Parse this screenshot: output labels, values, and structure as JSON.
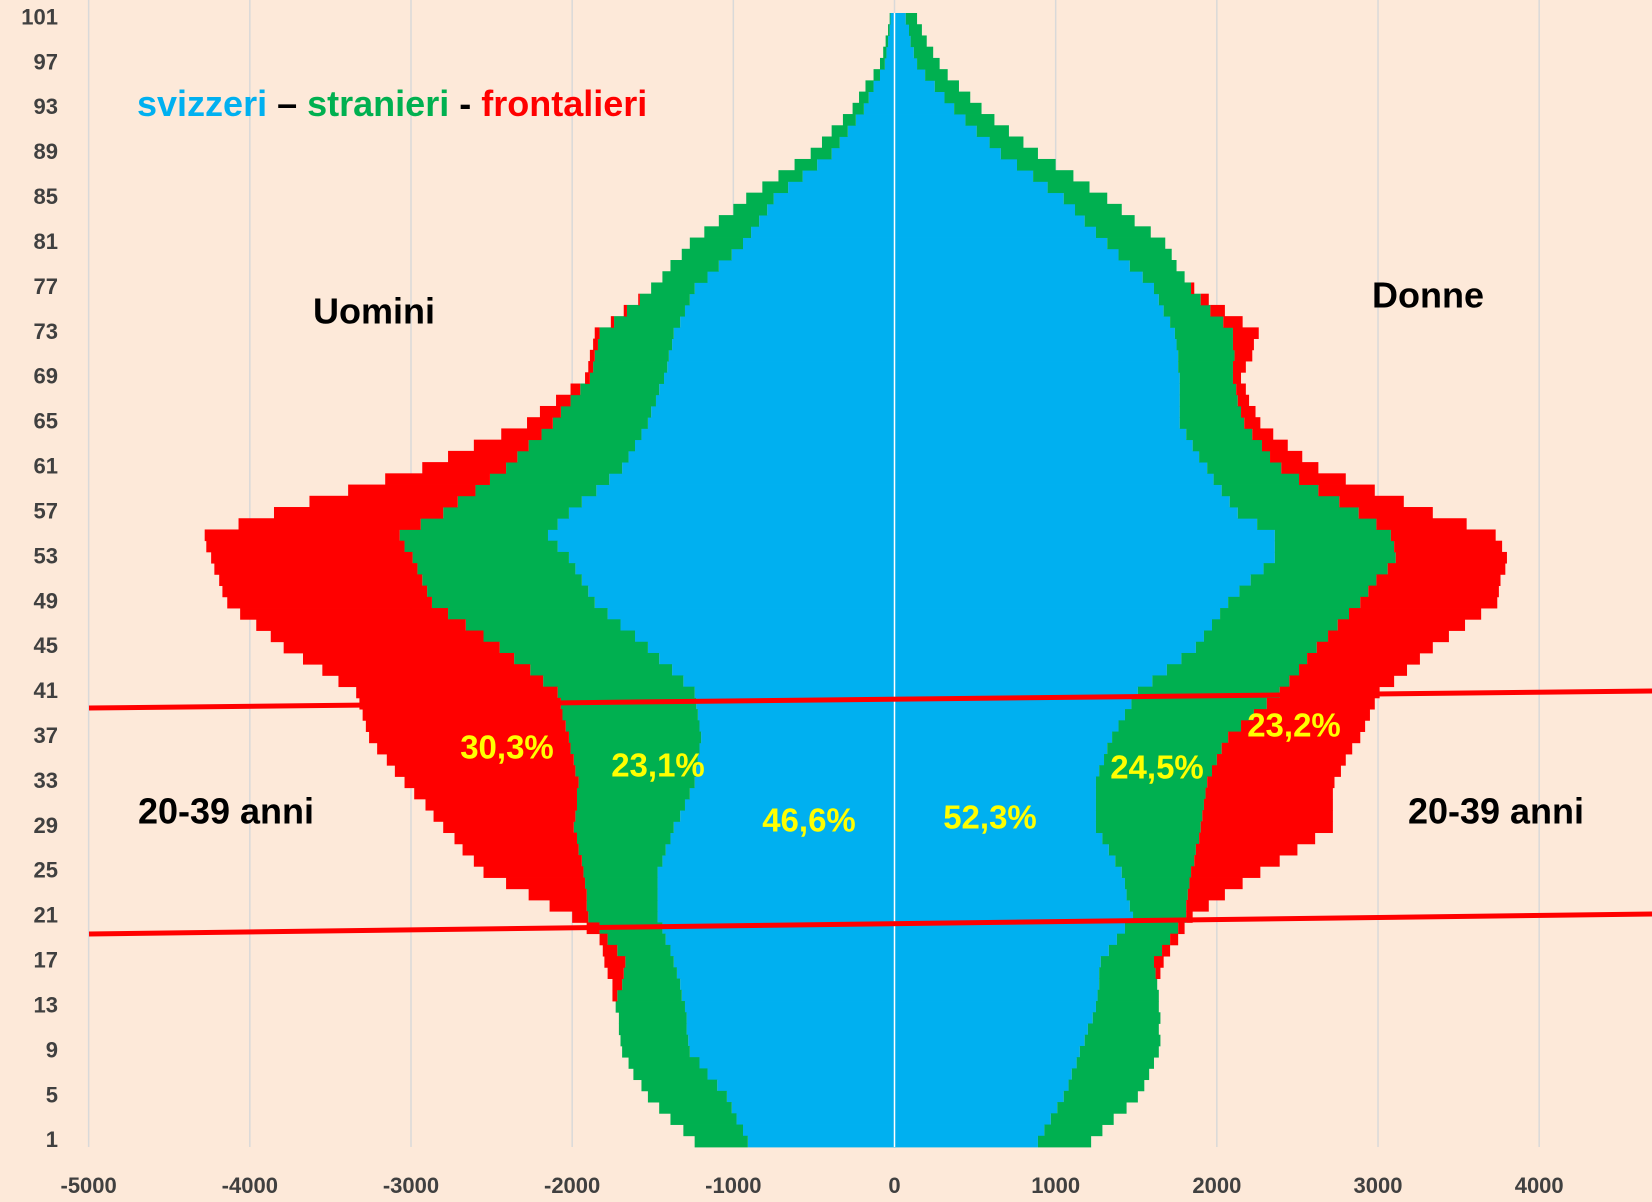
{
  "chart_data": {
    "type": "pyramid",
    "categories": [
      1,
      null,
      null,
      null,
      5,
      null,
      null,
      null,
      9,
      null,
      null,
      null,
      13,
      null,
      null,
      null,
      17,
      null,
      null,
      null,
      21,
      null,
      null,
      null,
      25,
      null,
      null,
      null,
      29,
      null,
      null,
      null,
      33,
      null,
      null,
      null,
      37,
      null,
      null,
      null,
      41,
      null,
      null,
      null,
      45,
      null,
      null,
      null,
      49,
      null,
      null,
      null,
      53,
      null,
      null,
      null,
      57,
      null,
      null,
      null,
      61,
      null,
      null,
      null,
      65,
      null,
      null,
      null,
      69,
      null,
      null,
      null,
      73,
      null,
      null,
      null,
      77,
      null,
      null,
      null,
      81,
      null,
      null,
      null,
      85,
      null,
      null,
      null,
      89,
      null,
      null,
      null,
      93,
      null,
      null,
      null,
      97,
      null,
      null,
      null,
      101
    ],
    "series": [
      {
        "name": "svizzeri",
        "color": "#00b0f0",
        "uomini": [
          -910,
          -940,
          -980,
          -1010,
          -1040,
          -1100,
          -1160,
          -1210,
          -1270,
          -1280,
          -1290,
          -1290,
          -1300,
          -1320,
          -1330,
          -1350,
          -1370,
          -1390,
          -1420,
          -1440,
          -1470,
          -1470,
          -1470,
          -1470,
          -1470,
          -1440,
          -1420,
          -1390,
          -1370,
          -1330,
          -1300,
          -1270,
          -1240,
          -1230,
          -1220,
          -1210,
          -1200,
          -1210,
          -1220,
          -1230,
          -1240,
          -1310,
          -1380,
          -1460,
          -1530,
          -1610,
          -1700,
          -1780,
          -1860,
          -1900,
          -1940,
          -1980,
          -2020,
          -2090,
          -2150,
          -2090,
          -2020,
          -1940,
          -1850,
          -1770,
          -1690,
          -1650,
          -1610,
          -1570,
          -1530,
          -1510,
          -1480,
          -1460,
          -1430,
          -1410,
          -1400,
          -1380,
          -1370,
          -1330,
          -1300,
          -1270,
          -1240,
          -1160,
          -1090,
          -1010,
          -940,
          -890,
          -840,
          -790,
          -750,
          -660,
          -570,
          -480,
          -390,
          -340,
          -290,
          -240,
          -190,
          -160,
          -130,
          -90,
          -60,
          -50,
          -40,
          -30,
          -25
        ],
        "donne": [
          890,
          930,
          970,
          1010,
          1050,
          1080,
          1100,
          1130,
          1150,
          1180,
          1200,
          1230,
          1250,
          1260,
          1270,
          1270,
          1280,
          1330,
          1380,
          1430,
          1480,
          1460,
          1440,
          1430,
          1410,
          1370,
          1330,
          1290,
          1250,
          1250,
          1250,
          1250,
          1250,
          1270,
          1300,
          1320,
          1350,
          1390,
          1430,
          1470,
          1510,
          1600,
          1690,
          1780,
          1870,
          1920,
          1970,
          2020,
          2070,
          2140,
          2210,
          2290,
          2360,
          2360,
          2360,
          2250,
          2130,
          2080,
          2030,
          1980,
          1940,
          1890,
          1850,
          1810,
          1770,
          1770,
          1770,
          1770,
          1770,
          1760,
          1760,
          1750,
          1740,
          1710,
          1670,
          1640,
          1610,
          1540,
          1460,
          1390,
          1320,
          1250,
          1180,
          1120,
          1050,
          950,
          860,
          760,
          660,
          590,
          510,
          440,
          370,
          310,
          250,
          190,
          140,
          120,
          100,
          90,
          70
        ]
      },
      {
        "name": "stranieri",
        "color": "#00b050",
        "uomini": [
          -330,
          -370,
          -410,
          -450,
          -490,
          -470,
          -460,
          -440,
          -420,
          -420,
          -420,
          -420,
          -430,
          -400,
          -360,
          -330,
          -300,
          -330,
          -360,
          -390,
          -430,
          -440,
          -440,
          -450,
          -460,
          -500,
          -540,
          -580,
          -620,
          -650,
          -670,
          -700,
          -720,
          -750,
          -770,
          -800,
          -820,
          -830,
          -840,
          -840,
          -850,
          -870,
          -880,
          -900,
          -920,
          -940,
          -960,
          -990,
          -1010,
          -1000,
          -990,
          -980,
          -970,
          -950,
          -920,
          -850,
          -780,
          -770,
          -750,
          -740,
          -720,
          -690,
          -660,
          -620,
          -590,
          -560,
          -530,
          -490,
          -460,
          -460,
          -460,
          -460,
          -460,
          -410,
          -360,
          -310,
          -270,
          -280,
          -300,
          -310,
          -330,
          -290,
          -250,
          -210,
          -170,
          -160,
          -150,
          -140,
          -130,
          -110,
          -100,
          -80,
          -70,
          -60,
          -50,
          -40,
          -30,
          -20,
          -15,
          -10,
          -5
        ],
        "donne": [
          330,
          360,
          390,
          430,
          460,
          470,
          480,
          480,
          490,
          470,
          440,
          420,
          390,
          380,
          360,
          350,
          330,
          330,
          330,
          330,
          330,
          350,
          380,
          400,
          430,
          490,
          540,
          600,
          650,
          660,
          670,
          680,
          690,
          700,
          700,
          710,
          720,
          760,
          800,
          840,
          880,
          850,
          820,
          780,
          750,
          770,
          780,
          800,
          820,
          800,
          780,
          770,
          750,
          740,
          720,
          740,
          750,
          680,
          600,
          530,
          460,
          440,
          430,
          410,
          400,
          380,
          360,
          350,
          330,
          340,
          350,
          350,
          360,
          330,
          290,
          260,
          230,
          260,
          290,
          330,
          360,
          340,
          310,
          290,
          270,
          260,
          250,
          240,
          230,
          210,
          200,
          180,
          170,
          160,
          150,
          140,
          140,
          120,
          100,
          80,
          70
        ]
      },
      {
        "name": "frontalieri",
        "color": "#ff0000",
        "uomini": [
          0,
          0,
          0,
          0,
          0,
          0,
          0,
          0,
          0,
          0,
          0,
          0,
          0,
          -30,
          -60,
          -100,
          -130,
          -90,
          -50,
          -80,
          -100,
          -230,
          -360,
          -490,
          -620,
          -670,
          -720,
          -760,
          -810,
          -880,
          -940,
          -1010,
          -1080,
          -1120,
          -1160,
          -1200,
          -1240,
          -1240,
          -1240,
          -1250,
          -1250,
          -1270,
          -1290,
          -1310,
          -1340,
          -1320,
          -1300,
          -1290,
          -1270,
          -1270,
          -1260,
          -1260,
          -1250,
          -1230,
          -1210,
          -1130,
          -1050,
          -920,
          -790,
          -650,
          -520,
          -430,
          -340,
          -250,
          -160,
          -130,
          -90,
          -60,
          -30,
          -30,
          -30,
          -30,
          -30,
          -20,
          -20,
          -10,
          0,
          0,
          0,
          0,
          0,
          0,
          0,
          0,
          0,
          0,
          0,
          0,
          0,
          0,
          0,
          0,
          0,
          0,
          0,
          0,
          0,
          0,
          0,
          0,
          0
        ],
        "donne": [
          0,
          0,
          0,
          0,
          0,
          0,
          0,
          0,
          0,
          0,
          0,
          0,
          0,
          0,
          0,
          30,
          60,
          50,
          50,
          40,
          40,
          140,
          230,
          330,
          430,
          530,
          630,
          720,
          820,
          810,
          800,
          790,
          790,
          800,
          800,
          810,
          820,
          770,
          720,
          670,
          620,
          650,
          670,
          700,
          720,
          750,
          790,
          820,
          850,
          810,
          770,
          730,
          690,
          670,
          650,
          560,
          460,
          400,
          350,
          290,
          230,
          200,
          160,
          130,
          100,
          90,
          70,
          60,
          50,
          80,
          110,
          130,
          160,
          120,
          90,
          50,
          20,
          0,
          0,
          0,
          0,
          0,
          0,
          0,
          0,
          0,
          0,
          0,
          0,
          0,
          0,
          0,
          0,
          0,
          0,
          0,
          0,
          0,
          0,
          0,
          0
        ]
      }
    ],
    "legend_separators": [
      "–",
      "-"
    ],
    "xlim": [
      -5550,
      4700
    ],
    "xticks": [
      -5000,
      -4000,
      -3000,
      -2000,
      -1000,
      0,
      1000,
      2000,
      3000,
      4000
    ],
    "grid": true,
    "annotations": [
      "Uomini",
      "Donne",
      "20-39 anni",
      "20-39 anni"
    ],
    "share_labels": [
      "30,3%",
      "23,1%",
      "46,6%",
      "52,3%",
      "24,5%",
      "23,2%"
    ]
  }
}
